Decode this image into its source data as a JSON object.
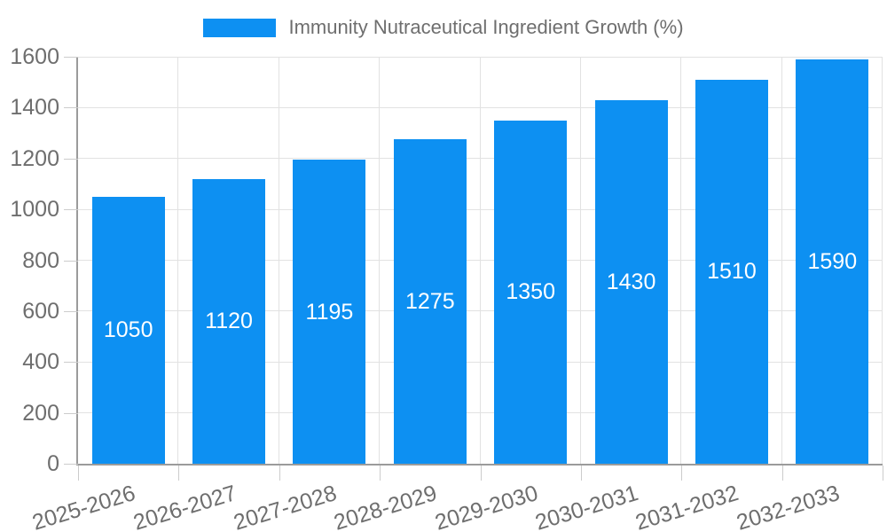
{
  "chart_data": {
    "type": "bar",
    "title": "Immunity Nutraceutical Ingredient Growth (%)",
    "categories": [
      "2025-2026",
      "2026-2027",
      "2027-2028",
      "2028-2029",
      "2029-2030",
      "2030-2031",
      "2031-2032",
      "2032-2033"
    ],
    "values": [
      1050,
      1120,
      1195,
      1275,
      1350,
      1430,
      1510,
      1590
    ],
    "yticks": [
      0,
      200,
      400,
      600,
      800,
      1000,
      1200,
      1400,
      1600
    ],
    "ylim": [
      0,
      1600
    ],
    "xlabel": "",
    "ylabel": "",
    "grid": true,
    "legend_position": "top-center",
    "bar_label_position": "center-inside",
    "colors": {
      "bar": "#0d90f2",
      "bar_value_label": "#ffffff",
      "axis_line": "#9b9b9b",
      "gridline": "#e2e2e2",
      "tick_mark": "#cccccc",
      "tick_label": "#6e6e6e",
      "legend_text": "#6e6e6e"
    }
  }
}
